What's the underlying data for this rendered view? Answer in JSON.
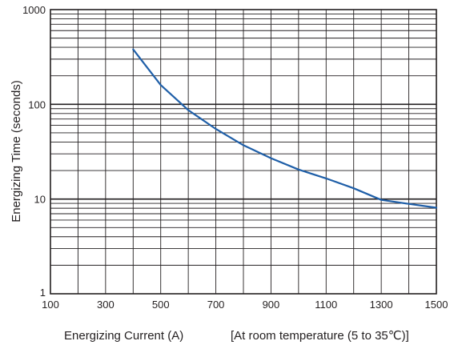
{
  "chart_data": {
    "type": "line",
    "xlabel": "Energizing Current (A)",
    "ylabel": "Energizing Time (seconds)",
    "note": "[At room temperature (5 to 35℃)]",
    "xlim": [
      100,
      1500
    ],
    "ylim": [
      1,
      1000
    ],
    "y_scale": "log",
    "grid": true,
    "x_ticks": [
      100,
      300,
      500,
      700,
      900,
      1100,
      1300,
      1500
    ],
    "x_tick_labels": [
      "100",
      "300",
      "500",
      "700",
      "900",
      "1100",
      "1300",
      "1500"
    ],
    "y_ticks": [
      1,
      10,
      100,
      1000
    ],
    "y_tick_labels": [
      "1",
      "10",
      "100",
      "1000"
    ],
    "series": [
      {
        "x": [
          400,
          500,
          600,
          700,
          800,
          900,
          1000,
          1100,
          1200,
          1300,
          1400,
          1500
        ],
        "y": [
          380,
          160,
          87,
          55,
          37,
          27,
          20.5,
          16.5,
          13,
          9.8,
          8.9,
          8.1
        ]
      }
    ],
    "colors": {
      "line": "#1f5fa8",
      "grid": "#231f20",
      "text": "#231f20"
    }
  }
}
